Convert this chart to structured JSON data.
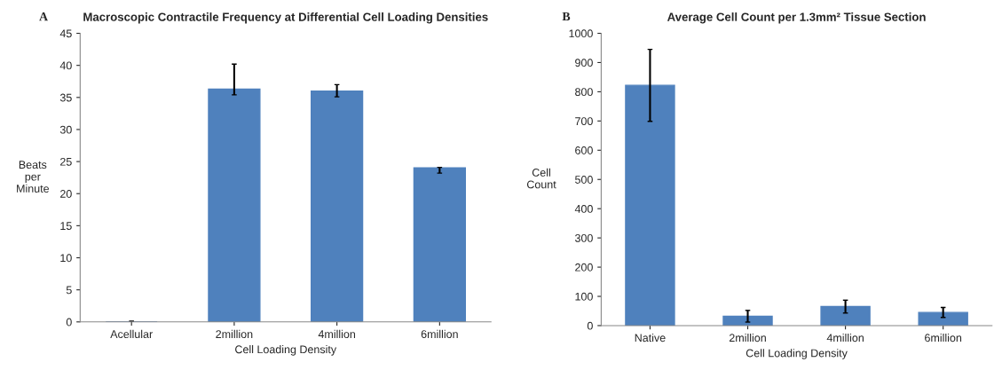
{
  "chart_data": [
    {
      "type": "bar",
      "title": "Macroscopic Contractile Frequency at Differential Cell Loading Densities",
      "xlabel": "Cell Loading Density",
      "ylabel": "Beats\nper\nMinute",
      "annotations": [
        "A"
      ],
      "categories": [
        "Acellular",
        "2million",
        "4million",
        "6million"
      ],
      "values": [
        0,
        36.3,
        36,
        24
      ],
      "color": "#4f81bd",
      "errors": [
        0.1,
        [
          35.4,
          40.2
        ],
        [
          35.1,
          37.0
        ],
        [
          23.2,
          24.1
        ]
      ],
      "ylim": [
        0,
        45
      ],
      "yticks": [
        0,
        5,
        10,
        15,
        20,
        25,
        30,
        35,
        40,
        45
      ],
      "grid": false,
      "legend": false
    },
    {
      "type": "bar",
      "title": "Average Cell Count per 1.3mm² Tissue Section",
      "xlabel": "Cell Loading Density",
      "ylabel": "Cell\nCount",
      "annotations": [
        "B"
      ],
      "categories": [
        "Native",
        "2million",
        "4million",
        "6million"
      ],
      "values": [
        822,
        32,
        65,
        45
      ],
      "color": "#4f81bd",
      "errors": [
        123,
        20,
        22,
        17
      ],
      "ylim": [
        0,
        1000
      ],
      "yticks": [
        0,
        100,
        200,
        300,
        400,
        500,
        600,
        700,
        800,
        900,
        1000
      ],
      "grid": false,
      "legend": false
    }
  ]
}
